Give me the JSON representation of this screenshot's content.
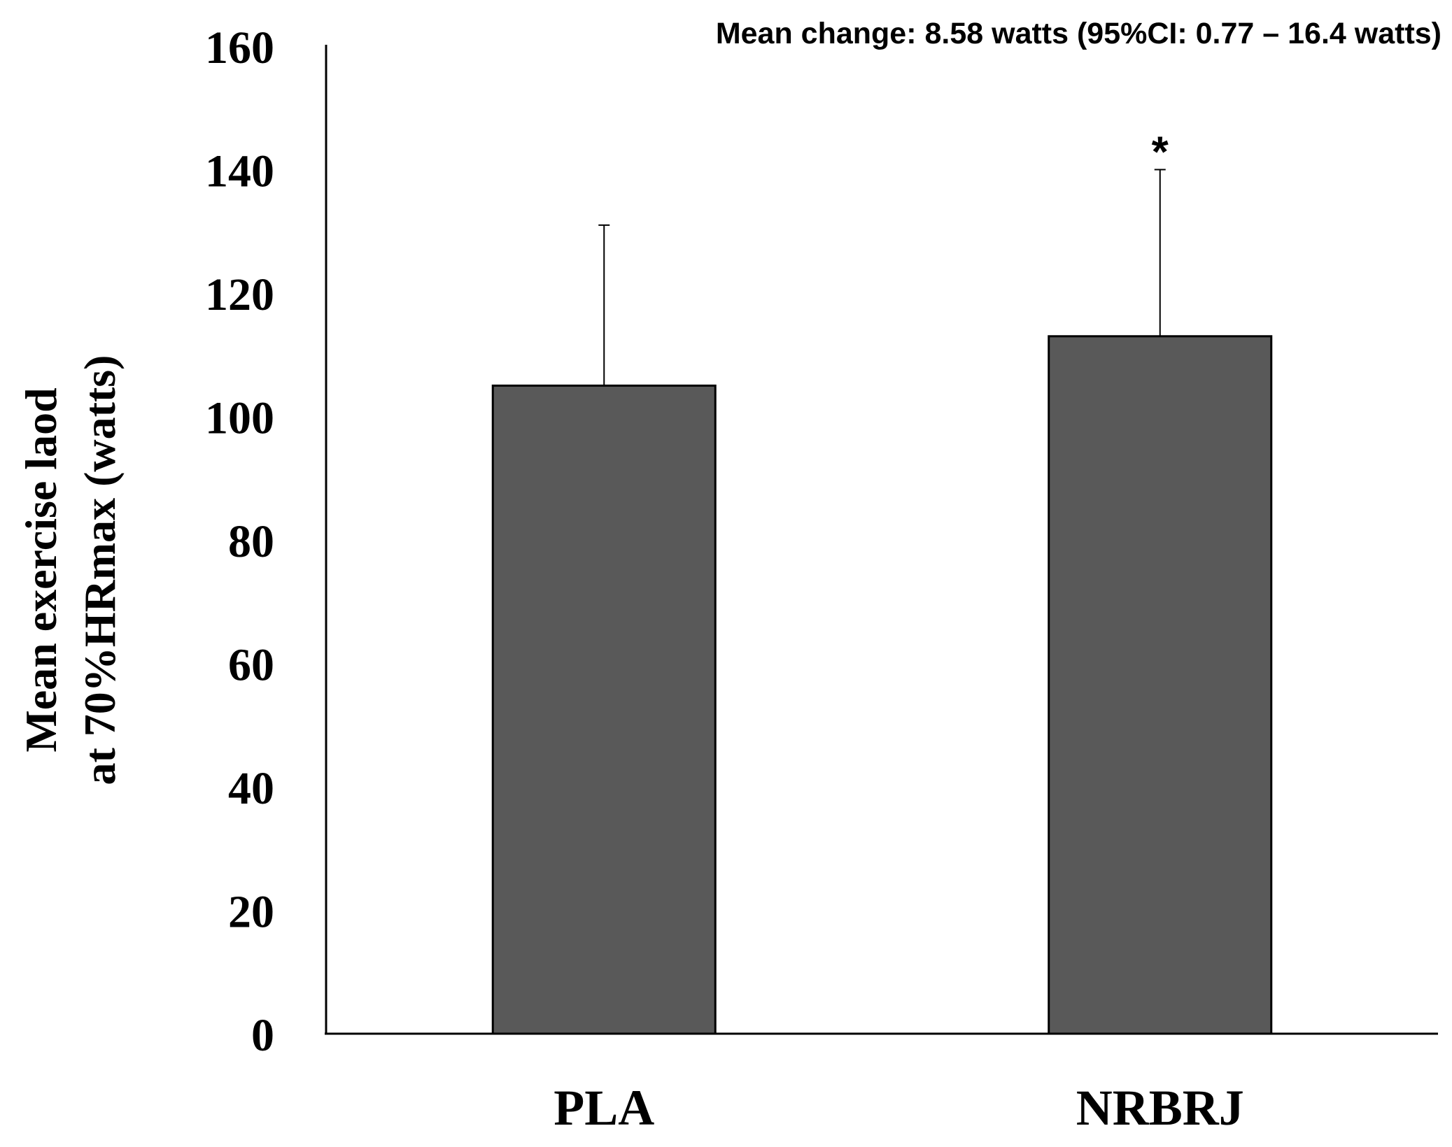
{
  "chart_data": {
    "type": "bar",
    "title": "",
    "annotation": "Mean change: 8.58 watts (95%CI: 0.77 – 16.4 watts)",
    "categories": [
      "PLA",
      "NRBRJ"
    ],
    "values": [
      105,
      113
    ],
    "error_upper": [
      131,
      140
    ],
    "significance_markers": [
      "",
      "*"
    ],
    "ylabel_line1": "Mean exercise laod",
    "ylabel_line2": "at 70%HRmax (watts)",
    "xlabel": "",
    "ylim": [
      0,
      160
    ],
    "yticks": [
      0,
      20,
      40,
      60,
      80,
      100,
      120,
      140,
      160
    ],
    "grid": false,
    "legend": "none",
    "bar_color": "#595959",
    "axis_color": "#000000"
  }
}
